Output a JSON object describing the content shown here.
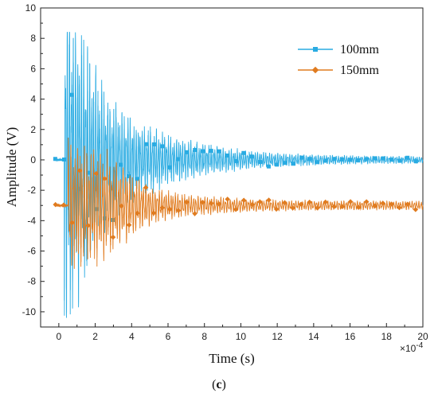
{
  "chart_data": {
    "type": "line",
    "xlabel": "Time  (s)",
    "ylabel": "Amplitude  (V)",
    "x_multiplier": "×10",
    "x_multiplier_exp": "-4",
    "xlim": [
      -1,
      20
    ],
    "ylim": [
      -11,
      10
    ],
    "x_ticks": [
      "0",
      "2",
      "4",
      "6",
      "8",
      "10",
      "12",
      "14",
      "16",
      "18",
      "20"
    ],
    "y_ticks": [
      "10",
      "8",
      "6",
      "4",
      "2",
      "0",
      "-2",
      "-4",
      "-6",
      "-8",
      "-10"
    ],
    "grid": false,
    "legend_position": "top-right",
    "caption_open": "(",
    "caption_letter": "c",
    "caption_close": ")",
    "series": [
      {
        "name": "100mm",
        "color": "#29abe2",
        "marker": "square",
        "offset": 0,
        "onset": 0.3,
        "peak": 8.4,
        "min": -10.4,
        "x_peak": 0.6,
        "decay": 3.5,
        "tail_amp": 0.25,
        "freq": 9
      },
      {
        "name": "150mm",
        "color": "#e07b1f",
        "marker": "diamond",
        "offset": -3,
        "onset": 0.5,
        "peak": 2.6,
        "min": -8.5,
        "x_peak": 2.8,
        "decay": 3.0,
        "tail_amp": 0.35,
        "freq": 8
      }
    ]
  }
}
